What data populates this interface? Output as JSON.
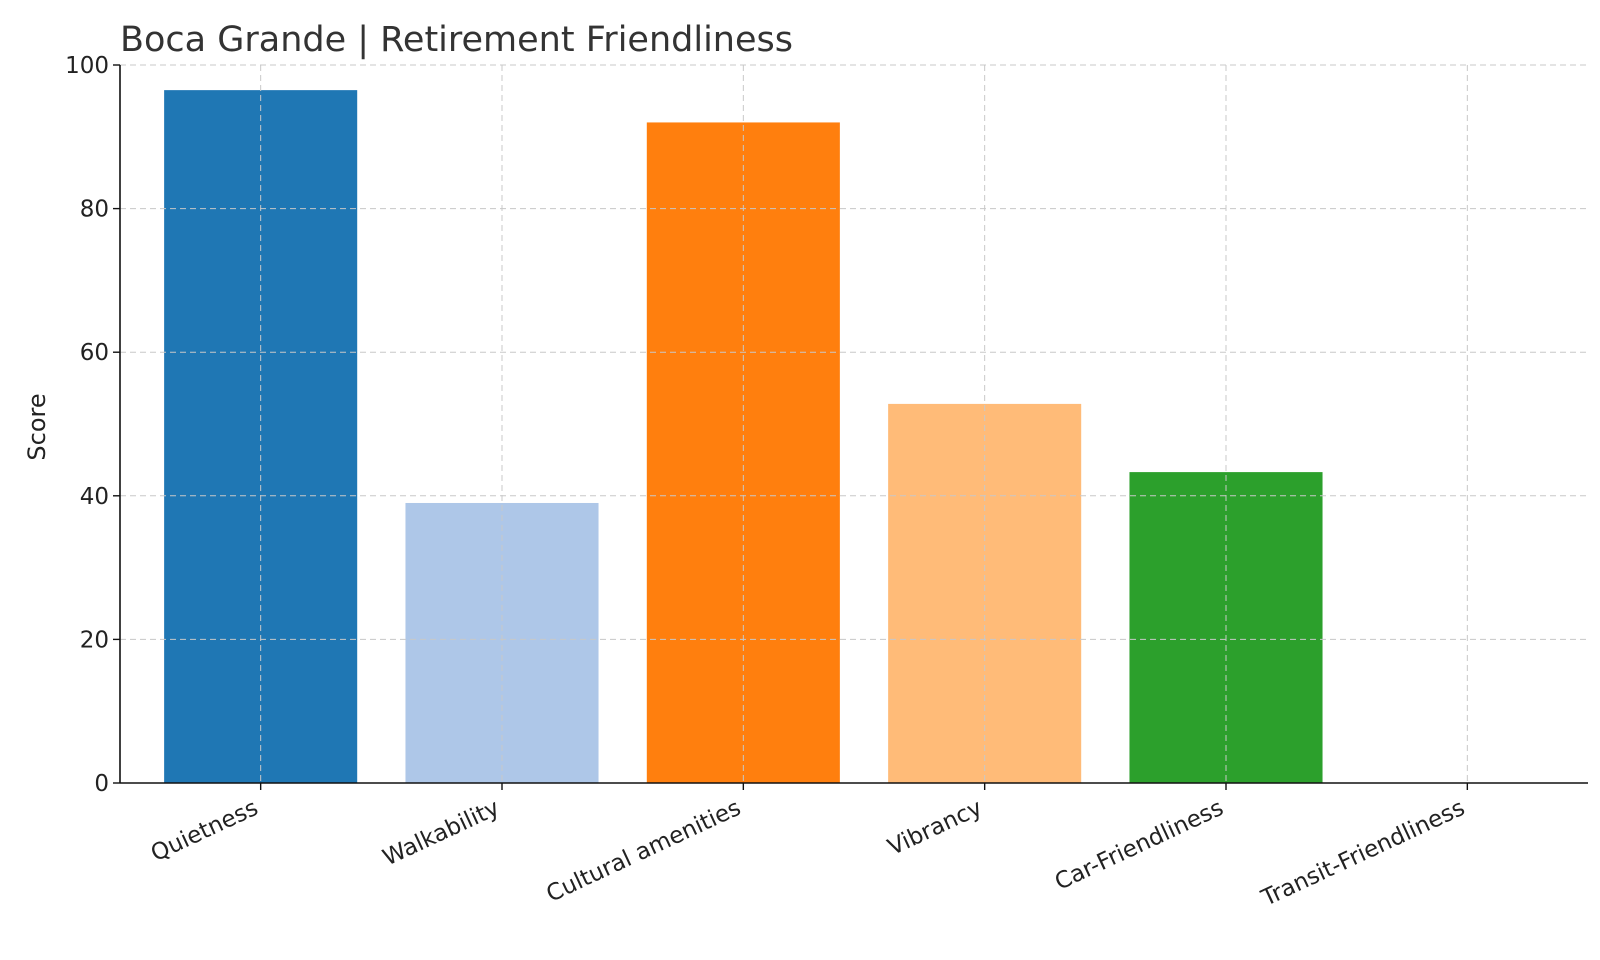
{
  "chart_data": {
    "type": "bar",
    "title": "Boca Grande | Retirement Friendliness",
    "xlabel": "",
    "ylabel": "Score",
    "ylim": [
      0,
      100
    ],
    "yticks": [
      0,
      20,
      40,
      60,
      80,
      100
    ],
    "grid": true,
    "categories": [
      "Quietness",
      "Walkability",
      "Cultural amenities",
      "Vibrancy",
      "Car-Friendliness",
      "Transit-Friendliness"
    ],
    "values": [
      96.5,
      39,
      92,
      52.8,
      43.3,
      0
    ],
    "colors": [
      "#1f77b4",
      "#aec7e8",
      "#ff7f0e",
      "#ffbb78",
      "#2ca02c",
      "#98df8a"
    ]
  }
}
